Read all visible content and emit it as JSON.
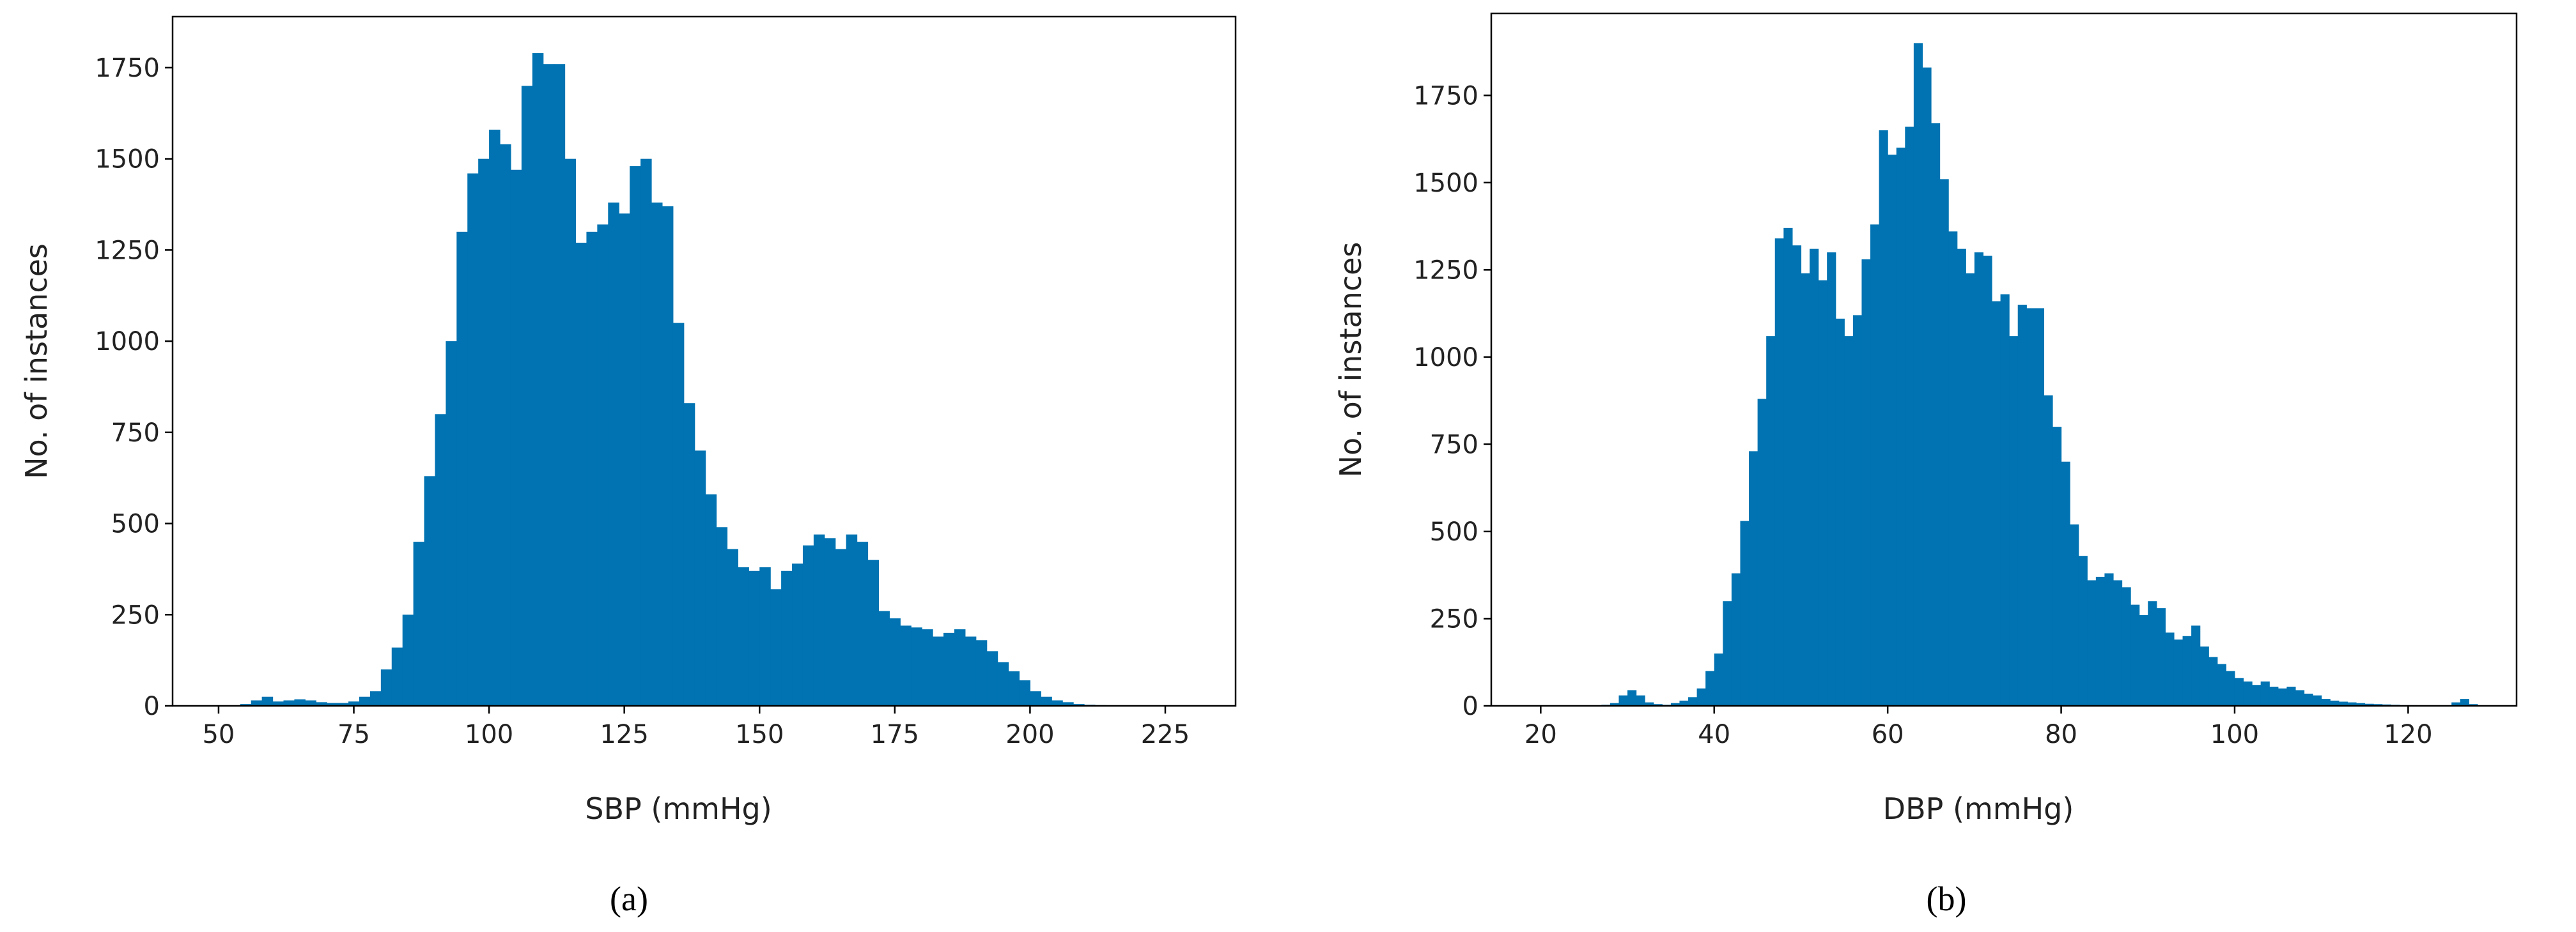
{
  "chart_data": [
    {
      "type": "histogram",
      "x_label": "SBP (mmHg)",
      "y_label": "No. of instances",
      "caption": "(a)",
      "color": "#0173b2",
      "xlim": [
        41.5,
        238
      ],
      "ylim": [
        0,
        1890
      ],
      "xticks": [
        50,
        75,
        100,
        125,
        150,
        175,
        200,
        225
      ],
      "yticks": [
        0,
        250,
        500,
        750,
        1000,
        1250,
        1500,
        1750
      ],
      "bins": [
        54,
        56,
        58,
        60,
        62,
        64,
        66,
        68,
        70,
        72,
        74,
        76,
        78,
        80,
        82,
        84,
        86,
        88,
        90,
        92,
        94,
        96,
        98,
        100,
        102,
        104,
        106,
        108,
        110,
        112,
        114,
        116,
        118,
        120,
        122,
        124,
        126,
        128,
        130,
        132,
        134,
        136,
        138,
        140,
        142,
        144,
        146,
        148,
        150,
        152,
        154,
        156,
        158,
        160,
        162,
        164,
        166,
        168,
        170,
        172,
        174,
        176,
        178,
        180,
        182,
        184,
        186,
        188,
        190,
        192,
        194,
        196,
        198,
        200,
        202,
        204,
        206,
        208,
        210,
        212,
        214
      ],
      "values": [
        5,
        15,
        25,
        12,
        15,
        18,
        15,
        10,
        8,
        8,
        12,
        25,
        40,
        100,
        160,
        250,
        450,
        630,
        800,
        1000,
        1300,
        1460,
        1500,
        1580,
        1540,
        1470,
        1700,
        1790,
        1760,
        1760,
        1500,
        1270,
        1300,
        1320,
        1380,
        1350,
        1480,
        1500,
        1380,
        1370,
        1050,
        830,
        700,
        580,
        490,
        430,
        380,
        370,
        380,
        320,
        370,
        390,
        440,
        470,
        460,
        430,
        470,
        450,
        400,
        260,
        240,
        220,
        215,
        210,
        190,
        200,
        210,
        190,
        180,
        150,
        120,
        95,
        70,
        40,
        25,
        15,
        10,
        5,
        3,
        2
      ]
    },
    {
      "type": "histogram",
      "x_label": "DBP (mmHg)",
      "y_label": "No. of instances",
      "caption": "(b)",
      "color": "#0173b2",
      "xlim": [
        14.3,
        132.5
      ],
      "ylim": [
        0,
        1985
      ],
      "xticks": [
        20,
        40,
        60,
        80,
        100,
        120
      ],
      "yticks": [
        0,
        250,
        500,
        750,
        1000,
        1250,
        1500,
        1750
      ],
      "bins": [
        27,
        28,
        29,
        30,
        31,
        32,
        33,
        34,
        35,
        36,
        37,
        38,
        39,
        40,
        41,
        42,
        43,
        44,
        45,
        46,
        47,
        48,
        49,
        50,
        51,
        52,
        53,
        54,
        55,
        56,
        57,
        58,
        59,
        60,
        61,
        62,
        63,
        64,
        65,
        66,
        67,
        68,
        69,
        70,
        71,
        72,
        73,
        74,
        75,
        76,
        77,
        78,
        79,
        80,
        81,
        82,
        83,
        84,
        85,
        86,
        87,
        88,
        89,
        90,
        91,
        92,
        93,
        94,
        95,
        96,
        97,
        98,
        99,
        100,
        101,
        102,
        103,
        104,
        105,
        106,
        107,
        108,
        109,
        110,
        111,
        112,
        113,
        114,
        115,
        116,
        117,
        118,
        119,
        120,
        121,
        122,
        123,
        124,
        125,
        126,
        127,
        128
      ],
      "values": [
        3,
        8,
        30,
        45,
        30,
        10,
        5,
        3,
        8,
        15,
        25,
        50,
        100,
        150,
        300,
        380,
        530,
        730,
        880,
        1060,
        1340,
        1370,
        1320,
        1240,
        1310,
        1220,
        1300,
        1110,
        1060,
        1120,
        1280,
        1380,
        1650,
        1580,
        1600,
        1660,
        1900,
        1830,
        1670,
        1510,
        1360,
        1310,
        1240,
        1300,
        1290,
        1160,
        1180,
        1060,
        1150,
        1140,
        1140,
        890,
        800,
        700,
        520,
        430,
        360,
        370,
        380,
        360,
        340,
        290,
        260,
        300,
        280,
        210,
        190,
        200,
        230,
        170,
        140,
        120,
        100,
        80,
        70,
        60,
        70,
        55,
        50,
        55,
        45,
        35,
        30,
        20,
        15,
        12,
        10,
        8,
        6,
        5,
        4,
        3,
        2,
        2,
        1,
        1,
        1,
        1,
        10,
        20,
        5
      ]
    }
  ]
}
